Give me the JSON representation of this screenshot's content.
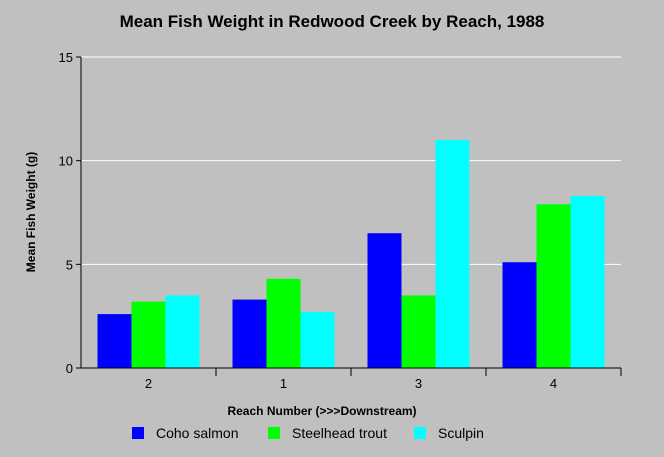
{
  "chart_data": {
    "type": "bar",
    "title": "Mean Fish Weight in Redwood Creek by Reach, 1988",
    "xlabel": "Reach Number (>>>Downstream)",
    "ylabel": "Mean Fish Weight (g)",
    "categories": [
      "2",
      "1",
      "3",
      "4"
    ],
    "ylim": [
      0,
      15
    ],
    "yticks": [
      "0",
      "5",
      "10",
      "15"
    ],
    "grid": true,
    "legend_position": "bottom",
    "series": [
      {
        "name": "Coho salmon",
        "color": "#0000ff",
        "values": [
          2.6,
          3.3,
          6.5,
          5.1
        ]
      },
      {
        "name": "Steelhead trout",
        "color": "#00ff00",
        "values": [
          3.2,
          4.3,
          3.5,
          7.9
        ]
      },
      {
        "name": "Sculpin",
        "color": "#00ffff",
        "values": [
          3.5,
          2.7,
          11.0,
          8.3
        ]
      }
    ]
  }
}
